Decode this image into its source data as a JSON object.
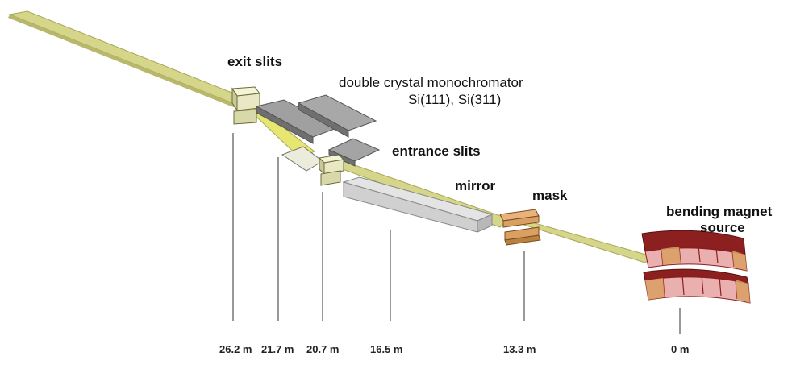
{
  "labels": {
    "exit_slits": "exit slits",
    "monochromator_line1": "double crystal monochromator",
    "monochromator_line2": "Si(111), Si(311)",
    "entrance_slits": "entrance slits",
    "mirror": "mirror",
    "mask": "mask",
    "source_line1": "bending magnet",
    "source_line2": "source"
  },
  "distances": {
    "exit_slits": "26.2 m",
    "monochromator": "21.7 m",
    "entrance_slits": "20.7 m",
    "mirror": "16.5 m",
    "mask": "13.3 m",
    "source": "0 m"
  },
  "colors": {
    "beam": "#d6d68a",
    "beam_dark": "#a8a85a",
    "crystal": "#9a9a9a",
    "slit": "#e8e8c4",
    "mask": "#d9a062",
    "magnet_pink": "#eab0b0",
    "magnet_dark": "#8c1f1f"
  }
}
